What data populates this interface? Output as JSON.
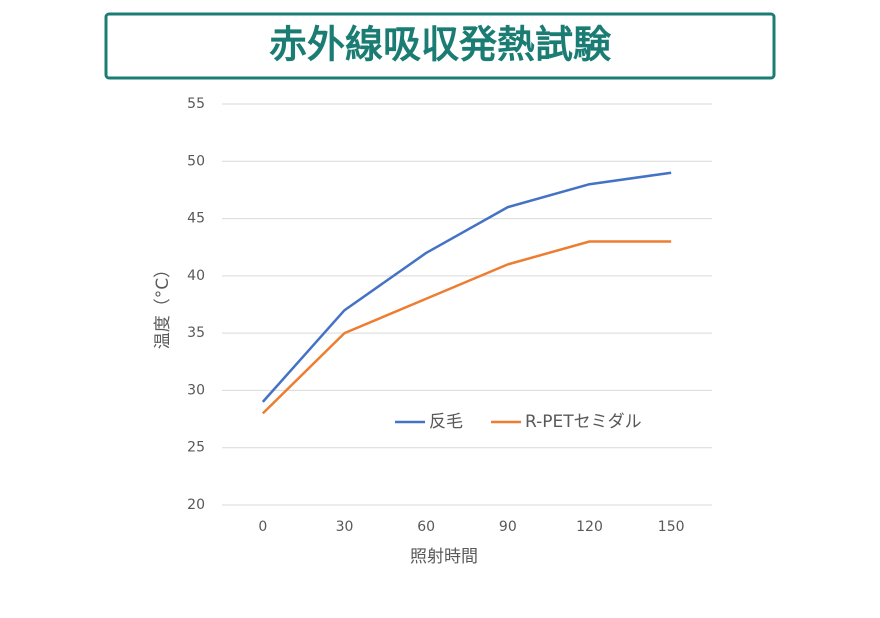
{
  "chart_data": {
    "type": "line",
    "title": "赤外線吸収発熱試験",
    "x_label": "照射時間",
    "y_label": "温度（°C）",
    "categories": [
      "0",
      "30",
      "60",
      "90",
      "120",
      "150"
    ],
    "series": [
      {
        "name": "反毛",
        "color": "#4472c4",
        "values": [
          29,
          37,
          42,
          46,
          48,
          49
        ]
      },
      {
        "name": "R-PETセミダル",
        "color": "#ed7d31",
        "values": [
          28,
          35,
          38,
          41,
          43,
          43
        ]
      }
    ],
    "ylim": [
      20,
      55
    ],
    "yticks": [
      20,
      25,
      30,
      35,
      40,
      45,
      50,
      55
    ],
    "grid": true
  }
}
